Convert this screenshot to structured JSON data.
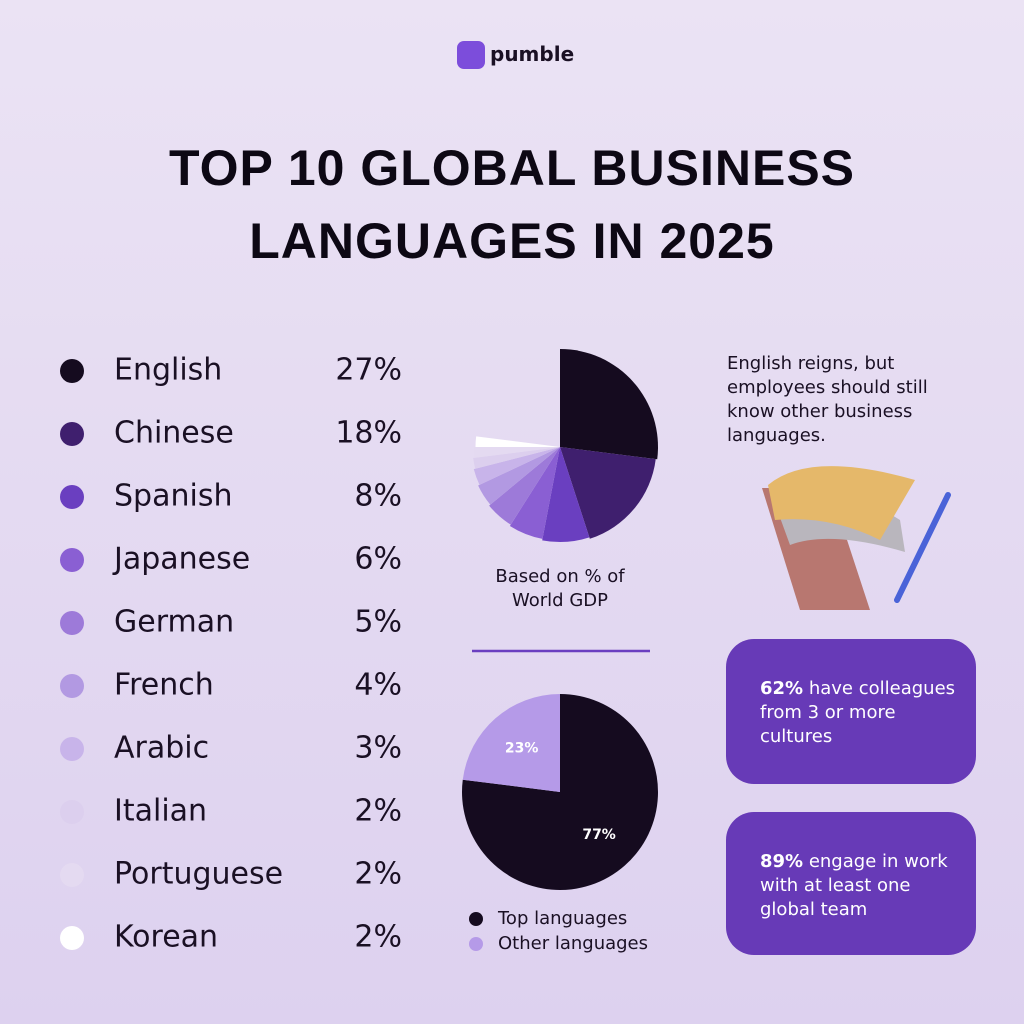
{
  "brand": "pumble",
  "title": "TOP 10 GLOBAL BUSINESS LANGUAGES IN 2025",
  "note": "English reigns, but employees should still know other business languages.",
  "cards": [
    {
      "highlight": "62%",
      "text": "have colleagues from 3 or more cultures"
    },
    {
      "highlight": "89%",
      "text": "engage in work with at least one global team"
    }
  ],
  "chart_data": [
    {
      "type": "pie",
      "subtitle": "Based on % of World GDP",
      "categories": [
        "English",
        "Chinese",
        "Spanish",
        "Japanese",
        "German",
        "French",
        "Arabic",
        "Italian",
        "Portuguese",
        "Korean"
      ],
      "values": [
        27,
        18,
        8,
        6,
        5,
        4,
        3,
        2,
        2,
        2
      ],
      "value_labels": [
        "27%",
        "18%",
        "8%",
        "6%",
        "5%",
        "4%",
        "3%",
        "2%",
        "2%",
        "2%"
      ],
      "colors": [
        "#150b1f",
        "#3f1f6e",
        "#6a3fc0",
        "#8a5fd3",
        "#9d7ad9",
        "#b299e2",
        "#c8b4ea",
        "#dccfee",
        "#e4daf1",
        "#ffffff"
      ]
    },
    {
      "type": "pie",
      "categories": [
        "Top languages",
        "Other languages"
      ],
      "values": [
        77,
        23
      ],
      "value_labels": [
        "77%",
        "23%"
      ],
      "colors": [
        "#150b1f",
        "#b59ae8"
      ]
    }
  ]
}
